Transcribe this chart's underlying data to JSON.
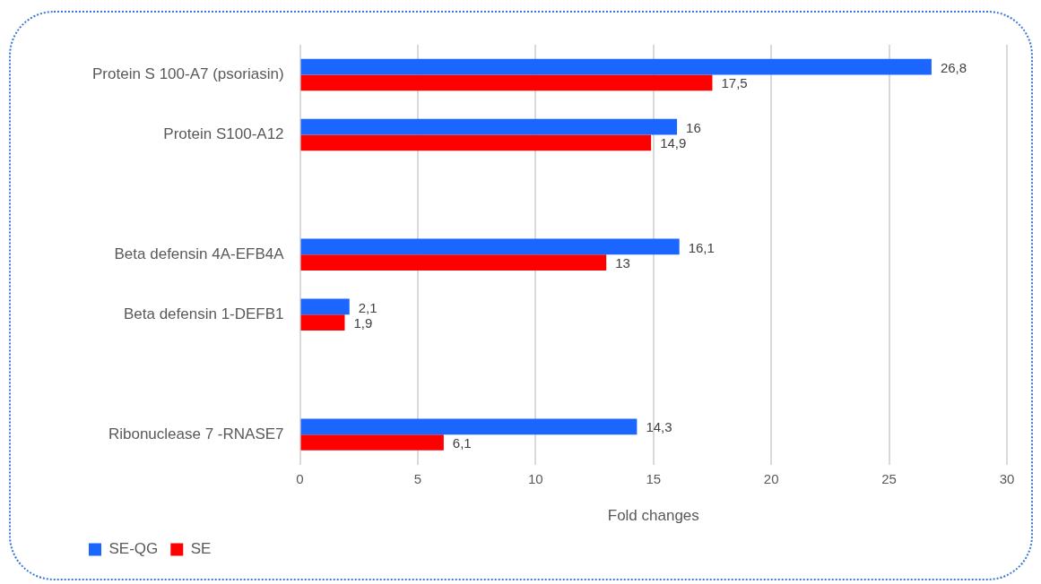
{
  "chart_data": {
    "type": "bar",
    "orientation": "horizontal",
    "xlabel": "Fold changes",
    "categories": [
      "Protein S 100-A7 (psoriasin)",
      "Protein S100-A12",
      null,
      "Beta defensin 4A-EFB4A",
      "Beta defensin 1-DEFB1",
      null,
      "Ribonuclease 7 -RNASE7"
    ],
    "series": [
      {
        "name": "SE-QG",
        "color": "#1a66ff",
        "values": [
          26.8,
          16,
          null,
          16.1,
          2.1,
          null,
          14.3
        ],
        "value_labels": [
          "26,8",
          "16",
          null,
          "16,1",
          "2,1",
          null,
          "14,3"
        ]
      },
      {
        "name": "SE",
        "color": "#ff0000",
        "values": [
          17.5,
          14.9,
          null,
          13,
          1.9,
          null,
          6.1
        ],
        "value_labels": [
          "17,5",
          "14,9",
          null,
          "13",
          "1,9",
          null,
          "6,1"
        ]
      }
    ],
    "xlim": [
      0,
      30
    ],
    "xticks": [
      0,
      5,
      10,
      15,
      20,
      25,
      30
    ],
    "grid": "x",
    "legend": "bottom left"
  }
}
